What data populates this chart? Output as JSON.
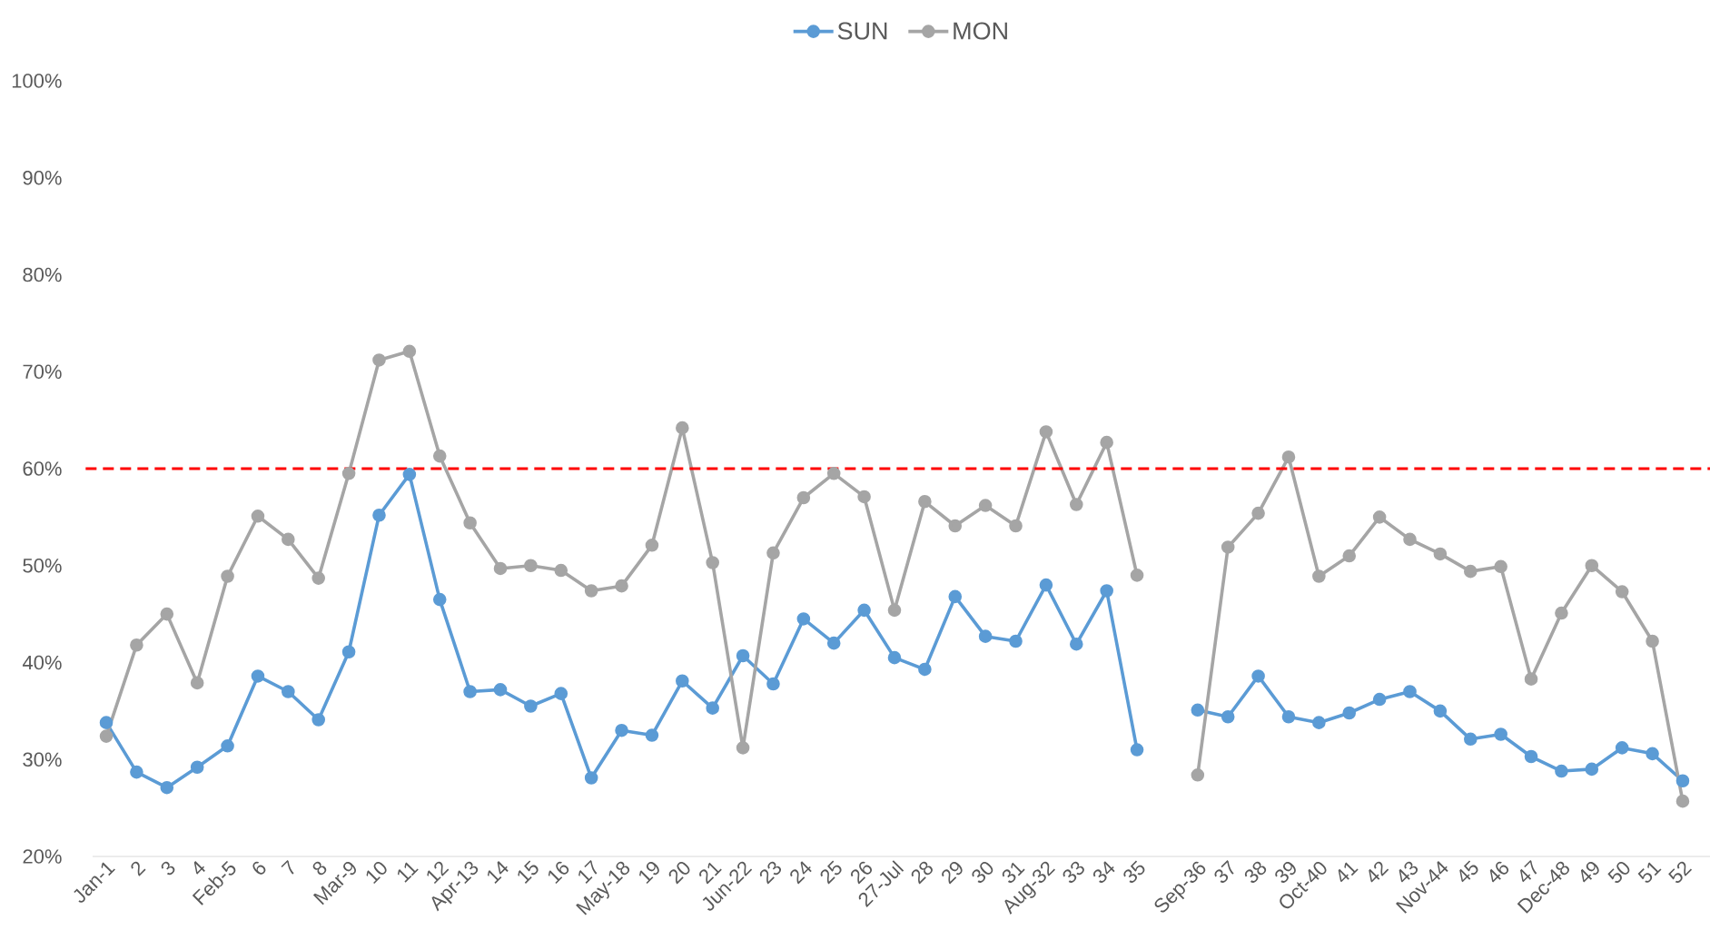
{
  "chart_data": {
    "type": "line",
    "categories": [
      "Jan-1",
      "2",
      "3",
      "4",
      "Feb-5",
      "6",
      "7",
      "8",
      "Mar-9",
      "10",
      "11",
      "12",
      "Apr-13",
      "14",
      "15",
      "16",
      "17",
      "May-18",
      "19",
      "20",
      "21",
      "Jun-22",
      "23",
      "24",
      "25",
      "26",
      "27-Jul",
      "28",
      "29",
      "30",
      "31",
      "Aug-32",
      "33",
      "34",
      "35",
      null,
      "Sep-36",
      "37",
      "38",
      "39",
      "Oct-40",
      "41",
      "42",
      "43",
      "Nov-44",
      "45",
      "46",
      "47",
      "Dec-48",
      "49",
      "50",
      "51",
      "52"
    ],
    "series": [
      {
        "name": "SUN",
        "color": "#5b9bd5",
        "values": [
          33.8,
          28.7,
          27.1,
          29.2,
          31.4,
          38.6,
          37.0,
          34.1,
          41.1,
          55.2,
          59.4,
          46.5,
          37.0,
          37.2,
          35.5,
          36.8,
          28.1,
          33.0,
          32.5,
          38.1,
          35.3,
          40.7,
          37.8,
          44.5,
          42.0,
          45.4,
          40.5,
          39.3,
          46.8,
          42.7,
          42.2,
          48.0,
          41.9,
          47.4,
          31.0,
          null,
          35.1,
          34.4,
          38.6,
          34.4,
          33.8,
          34.8,
          36.2,
          37.0,
          35.0,
          32.1,
          32.6,
          30.3,
          28.8,
          29.0,
          31.2,
          30.6,
          27.8
        ]
      },
      {
        "name": "MON",
        "color": "#a5a5a5",
        "values": [
          32.4,
          41.8,
          45.0,
          37.9,
          48.9,
          55.1,
          52.7,
          48.7,
          59.5,
          71.2,
          72.1,
          61.3,
          54.4,
          49.7,
          50.0,
          49.5,
          47.4,
          47.9,
          52.1,
          64.2,
          50.3,
          31.2,
          51.3,
          57.0,
          59.5,
          57.1,
          45.4,
          56.6,
          54.1,
          56.2,
          54.1,
          63.8,
          56.3,
          62.7,
          49.0,
          null,
          28.4,
          51.9,
          55.4,
          61.2,
          48.9,
          51.0,
          55.0,
          52.7,
          51.2,
          49.4,
          49.9,
          38.3,
          45.1,
          50.0,
          47.3,
          42.2,
          25.7
        ]
      }
    ],
    "ylim": [
      20,
      100
    ],
    "yticks": [
      {
        "value": 20,
        "label": "20%"
      },
      {
        "value": 30,
        "label": "30%"
      },
      {
        "value": 40,
        "label": "40%"
      },
      {
        "value": 50,
        "label": "50%"
      },
      {
        "value": 60,
        "label": "60%"
      },
      {
        "value": 70,
        "label": "70%"
      },
      {
        "value": 80,
        "label": "80%"
      },
      {
        "value": 90,
        "label": "90%"
      },
      {
        "value": 100,
        "label": "100%"
      }
    ],
    "ref_lines": [
      {
        "axis": "y",
        "value": 60,
        "color": "#ff0000",
        "line_style": "dashed"
      }
    ],
    "legend": "top",
    "marker": "circle",
    "line_style": "solid"
  }
}
